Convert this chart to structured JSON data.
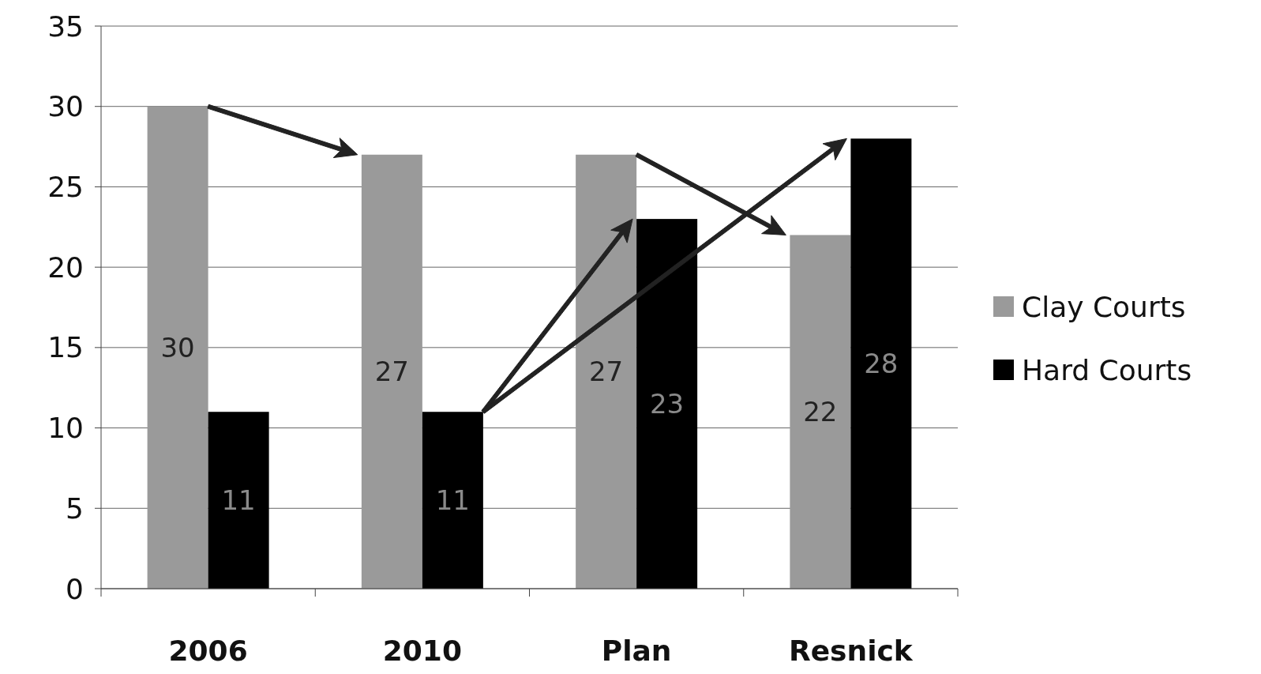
{
  "chart_data": {
    "type": "bar",
    "categories": [
      "2006",
      "2010",
      "Plan",
      "Resnick"
    ],
    "series": [
      {
        "name": "Clay Courts",
        "color": "#9a9a9a",
        "values": [
          30,
          27,
          27,
          22
        ]
      },
      {
        "name": "Hard Courts",
        "color": "#000000",
        "values": [
          11,
          11,
          23,
          28
        ]
      }
    ],
    "ylim": [
      0,
      35
    ],
    "yticks": [
      0,
      5,
      10,
      15,
      20,
      25,
      30,
      35
    ],
    "grid": "y",
    "legend": "right",
    "data_labels": true
  }
}
